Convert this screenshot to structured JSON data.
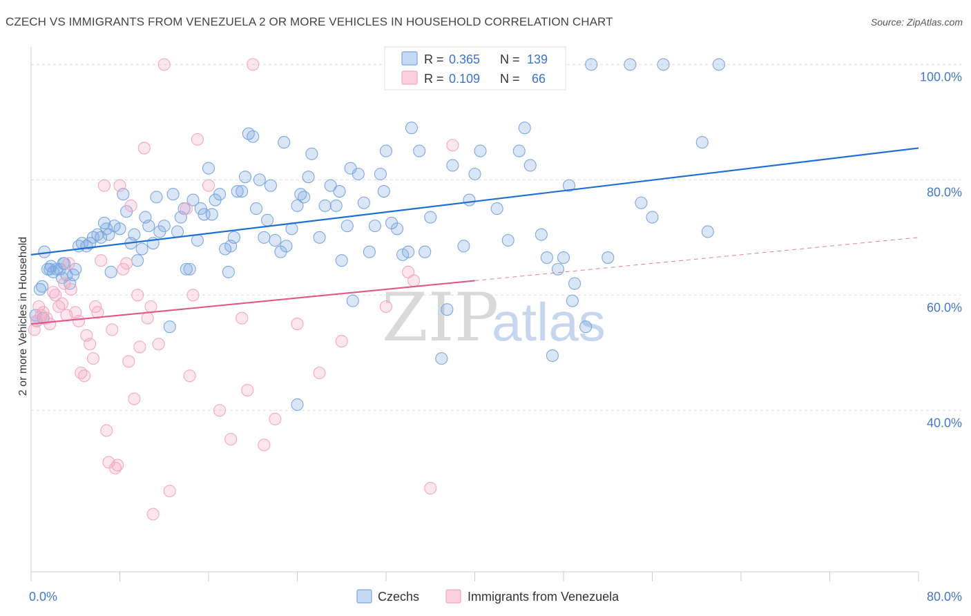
{
  "title": "CZECH VS IMMIGRANTS FROM VENEZUELA 2 OR MORE VEHICLES IN HOUSEHOLD CORRELATION CHART",
  "source": "Source: ZipAtlas.com",
  "watermark": {
    "zip": "ZIP",
    "atlas": "atlas"
  },
  "colors": {
    "czechs": "#7ba7e0",
    "czechs_line": "#1f6ed4",
    "venezuela": "#f4a6be",
    "venezuela_line": "#e0588a",
    "tick_label": "#4477cc"
  },
  "legend_top": {
    "rows": [
      {
        "r_label": "R =",
        "r_value": "0.365",
        "n_label": "N =",
        "n_value": "139"
      },
      {
        "r_label": "R =",
        "r_value": "0.109",
        "n_label": "N =",
        "n_value": "66"
      }
    ]
  },
  "legend_bottom": [
    "Czechs",
    "Immigrants from Venezuela"
  ],
  "chart_data": {
    "type": "scatter",
    "ylabel": "2 or more Vehicles in Household",
    "xlabel": "",
    "xlim": [
      0,
      80
    ],
    "ylim": [
      12,
      104
    ],
    "x_tick_labels": [
      "0.0%",
      "80.0%"
    ],
    "y_tick_labels": [
      "100.0%",
      "80.0%",
      "60.0%",
      "40.0%"
    ],
    "y_ticks": [
      100,
      80,
      60,
      40
    ],
    "grid": true,
    "legend_placement": "top-center",
    "series": [
      {
        "name": "Czechs",
        "trend": {
          "x": [
            0,
            80
          ],
          "y": [
            67.0,
            85.5
          ],
          "dashed_from": null
        },
        "points": [
          [
            0.5,
            55.5
          ],
          [
            0.8,
            61
          ],
          [
            1.0,
            61.5
          ],
          [
            1.2,
            67.5
          ],
          [
            1.5,
            64.5
          ],
          [
            1.8,
            65
          ],
          [
            2.0,
            64
          ],
          [
            2.3,
            64.5
          ],
          [
            2.6,
            64.5
          ],
          [
            2.8,
            63
          ],
          [
            3.0,
            65.5
          ],
          [
            3.2,
            63.5
          ],
          [
            3.5,
            62
          ],
          [
            3.8,
            63.5
          ],
          [
            4.0,
            64.5
          ],
          [
            4.3,
            68.5
          ],
          [
            4.6,
            69
          ],
          [
            5.0,
            68.5
          ],
          [
            5.3,
            69
          ],
          [
            5.6,
            70
          ],
          [
            6.0,
            70.5
          ],
          [
            6.3,
            70
          ],
          [
            6.6,
            72.5
          ],
          [
            6.8,
            71.5
          ],
          [
            7.0,
            70.5
          ],
          [
            7.2,
            64
          ],
          [
            7.5,
            72
          ],
          [
            8.0,
            71.5
          ],
          [
            8.3,
            77.5
          ],
          [
            8.6,
            74.5
          ],
          [
            9.0,
            69
          ],
          [
            9.3,
            70.5
          ],
          [
            9.6,
            66
          ],
          [
            10.0,
            68
          ],
          [
            10.3,
            73.5
          ],
          [
            10.6,
            72
          ],
          [
            11.0,
            69
          ],
          [
            11.3,
            77
          ],
          [
            11.6,
            71
          ],
          [
            12.0,
            72
          ],
          [
            12.5,
            54.5
          ],
          [
            12.8,
            77.5
          ],
          [
            13.2,
            71
          ],
          [
            13.5,
            73.5
          ],
          [
            13.8,
            75
          ],
          [
            14.0,
            64.5
          ],
          [
            14.3,
            64.5
          ],
          [
            14.6,
            76.5
          ],
          [
            15.0,
            69.5
          ],
          [
            15.3,
            75
          ],
          [
            15.6,
            74
          ],
          [
            16.0,
            82
          ],
          [
            16.3,
            74
          ],
          [
            16.6,
            76.5
          ],
          [
            17.0,
            77.5
          ],
          [
            17.5,
            68
          ],
          [
            17.8,
            64
          ],
          [
            18.0,
            68.5
          ],
          [
            18.3,
            70
          ],
          [
            18.6,
            78
          ],
          [
            19.0,
            78
          ],
          [
            19.3,
            80.5
          ],
          [
            19.6,
            88
          ],
          [
            20.0,
            87.5
          ],
          [
            20.3,
            75
          ],
          [
            20.6,
            80
          ],
          [
            21.0,
            70
          ],
          [
            21.3,
            73
          ],
          [
            21.6,
            79
          ],
          [
            22.0,
            69.5
          ],
          [
            22.5,
            67.5
          ],
          [
            22.8,
            86.5
          ],
          [
            23.0,
            68.5
          ],
          [
            23.5,
            71.5
          ],
          [
            24.0,
            75.5
          ],
          [
            24.3,
            77.5
          ],
          [
            24.6,
            77
          ],
          [
            25.0,
            80.5
          ],
          [
            25.3,
            84.5
          ],
          [
            26.0,
            70
          ],
          [
            26.5,
            75.5
          ],
          [
            27.0,
            79
          ],
          [
            27.5,
            75.5
          ],
          [
            27.8,
            78
          ],
          [
            28.0,
            66
          ],
          [
            28.5,
            72
          ],
          [
            28.8,
            82
          ],
          [
            29.0,
            59
          ],
          [
            29.5,
            81
          ],
          [
            30.0,
            76
          ],
          [
            30.5,
            67.5
          ],
          [
            31.0,
            72
          ],
          [
            31.5,
            81
          ],
          [
            31.8,
            78
          ],
          [
            32.0,
            85
          ],
          [
            32.5,
            72.5
          ],
          [
            33.0,
            71.5
          ],
          [
            33.5,
            67
          ],
          [
            34.0,
            67.5
          ],
          [
            34.3,
            89
          ],
          [
            35.0,
            85
          ],
          [
            35.5,
            67.5
          ],
          [
            36.0,
            73.5
          ],
          [
            37.0,
            49
          ],
          [
            37.5,
            57.5
          ],
          [
            38.0,
            82.5
          ],
          [
            39.0,
            68.5
          ],
          [
            39.5,
            76.5
          ],
          [
            40.0,
            81
          ],
          [
            40.5,
            85
          ],
          [
            41.0,
            100
          ],
          [
            42.0,
            75
          ],
          [
            43.0,
            69.5
          ],
          [
            44.0,
            85
          ],
          [
            44.5,
            89
          ],
          [
            45.0,
            82.5
          ],
          [
            46.0,
            70.5
          ],
          [
            46.5,
            66.5
          ],
          [
            47.0,
            49.5
          ],
          [
            47.5,
            64.5
          ],
          [
            48.0,
            66.5
          ],
          [
            48.5,
            79
          ],
          [
            48.8,
            59
          ],
          [
            49.0,
            62
          ],
          [
            50.0,
            54.5
          ],
          [
            50.5,
            100
          ],
          [
            52.0,
            66.5
          ],
          [
            54.0,
            100
          ],
          [
            55.0,
            76
          ],
          [
            56.0,
            73.5
          ],
          [
            57.0,
            100
          ],
          [
            60.5,
            86.5
          ],
          [
            61.0,
            71
          ],
          [
            62.0,
            100
          ],
          [
            24.0,
            41
          ],
          [
            0.4,
            56.5
          ],
          [
            1.1,
            56
          ],
          [
            1.7,
            64.5
          ],
          [
            2.9,
            65.5
          ]
        ]
      },
      {
        "name": "Immigrants from Venezuela",
        "trend": {
          "x": [
            0,
            80
          ],
          "y": [
            55.0,
            70.0
          ],
          "dashed_from": 40
        },
        "points": [
          [
            0.3,
            54
          ],
          [
            0.5,
            55.5
          ],
          [
            0.7,
            58
          ],
          [
            0.9,
            56.5
          ],
          [
            1.1,
            57
          ],
          [
            1.4,
            56
          ],
          [
            1.7,
            55
          ],
          [
            2.0,
            60.5
          ],
          [
            2.2,
            60
          ],
          [
            2.5,
            58
          ],
          [
            2.8,
            58.5
          ],
          [
            3.0,
            62
          ],
          [
            3.2,
            56.5
          ],
          [
            3.4,
            65.5
          ],
          [
            3.6,
            61
          ],
          [
            4.0,
            57
          ],
          [
            4.3,
            55.5
          ],
          [
            4.5,
            46.5
          ],
          [
            4.8,
            46
          ],
          [
            5.0,
            53
          ],
          [
            5.3,
            51.5
          ],
          [
            5.6,
            49
          ],
          [
            5.8,
            58
          ],
          [
            6.0,
            57
          ],
          [
            6.3,
            66
          ],
          [
            6.6,
            79
          ],
          [
            6.8,
            36.5
          ],
          [
            7.0,
            31
          ],
          [
            7.3,
            54
          ],
          [
            7.6,
            30
          ],
          [
            7.8,
            30.5
          ],
          [
            8.0,
            79
          ],
          [
            8.3,
            64.5
          ],
          [
            8.6,
            65.5
          ],
          [
            8.8,
            48.5
          ],
          [
            9.0,
            75.5
          ],
          [
            9.3,
            42
          ],
          [
            9.6,
            60
          ],
          [
            9.8,
            51
          ],
          [
            10.2,
            85.5
          ],
          [
            10.5,
            56
          ],
          [
            10.8,
            58
          ],
          [
            11.0,
            22
          ],
          [
            11.5,
            51.5
          ],
          [
            12.0,
            100
          ],
          [
            12.5,
            26
          ],
          [
            14.0,
            75
          ],
          [
            14.3,
            46
          ],
          [
            14.6,
            60
          ],
          [
            15.0,
            87
          ],
          [
            16.0,
            79
          ],
          [
            17.0,
            40
          ],
          [
            18.0,
            35
          ],
          [
            19.0,
            56
          ],
          [
            19.5,
            43.5
          ],
          [
            20.0,
            100
          ],
          [
            21.0,
            34
          ],
          [
            22.0,
            38.5
          ],
          [
            24.0,
            55
          ],
          [
            26.0,
            46.5
          ],
          [
            28.0,
            52
          ],
          [
            32.0,
            58
          ],
          [
            34.0,
            64
          ],
          [
            34.5,
            62.5
          ],
          [
            36.0,
            26.5
          ],
          [
            38.0,
            86
          ]
        ]
      }
    ]
  }
}
